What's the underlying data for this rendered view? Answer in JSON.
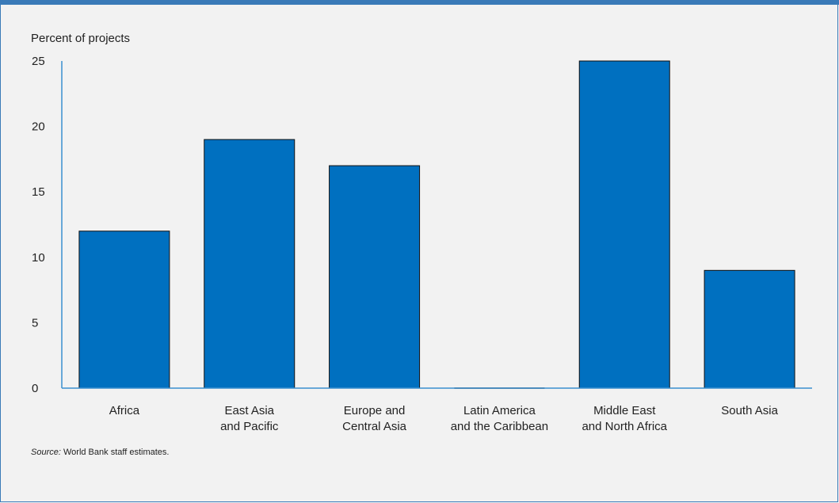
{
  "chart_data": {
    "type": "bar",
    "ylabel": "Percent of projects",
    "ylim": [
      0,
      25
    ],
    "yticks": [
      0,
      5,
      10,
      15,
      20,
      25
    ],
    "categories": [
      [
        "Africa"
      ],
      [
        "East Asia",
        "and Pacific"
      ],
      [
        "Europe and",
        "Central Asia"
      ],
      [
        "Latin America",
        "and the Caribbean"
      ],
      [
        "Middle East",
        "and North Africa"
      ],
      [
        "South Asia"
      ]
    ],
    "values": [
      12,
      19,
      17,
      0,
      25,
      9
    ],
    "colors": {
      "bar": "#0070c0",
      "axis": "#3a8fd0"
    }
  },
  "source": {
    "prefix": "Source:",
    "text": " World Bank staff estimates."
  }
}
